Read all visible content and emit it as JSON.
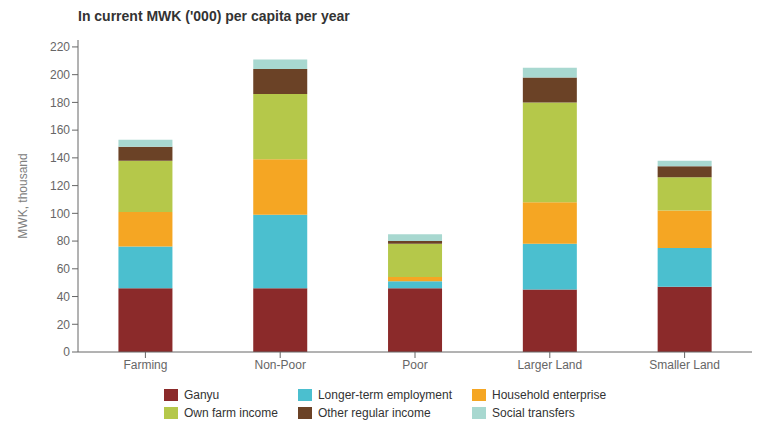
{
  "chart_data": {
    "type": "bar",
    "stacked": true,
    "title": "In current MWK ('000) per capita per year",
    "ylabel": "MWK, thousand",
    "categories": [
      "Farming",
      "Non-Poor",
      "Poor",
      "Larger Land",
      "Smaller Land"
    ],
    "series": [
      {
        "name": "Ganyu",
        "color": "#8B2A2A",
        "values": [
          46,
          46,
          46,
          45,
          47
        ]
      },
      {
        "name": "Longer-term employment",
        "color": "#4BBFCF",
        "values": [
          30,
          53,
          5,
          33,
          28
        ]
      },
      {
        "name": "Household enterprise",
        "color": "#F5A623",
        "values": [
          25,
          40,
          3,
          30,
          27
        ]
      },
      {
        "name": "Own farm income",
        "color": "#B5C84A",
        "values": [
          37,
          47,
          24,
          72,
          24
        ]
      },
      {
        "name": "Other regular income",
        "color": "#6B4226",
        "values": [
          10,
          18,
          2,
          18,
          8
        ]
      },
      {
        "name": "Social transfers",
        "color": "#A8D8D0",
        "values": [
          5,
          7,
          5,
          7,
          4
        ]
      }
    ],
    "ylim": [
      0,
      225
    ],
    "yticks": [
      0,
      20,
      40,
      60,
      80,
      100,
      120,
      140,
      160,
      180,
      200,
      220
    ],
    "grid": false,
    "legend": "bottom"
  }
}
